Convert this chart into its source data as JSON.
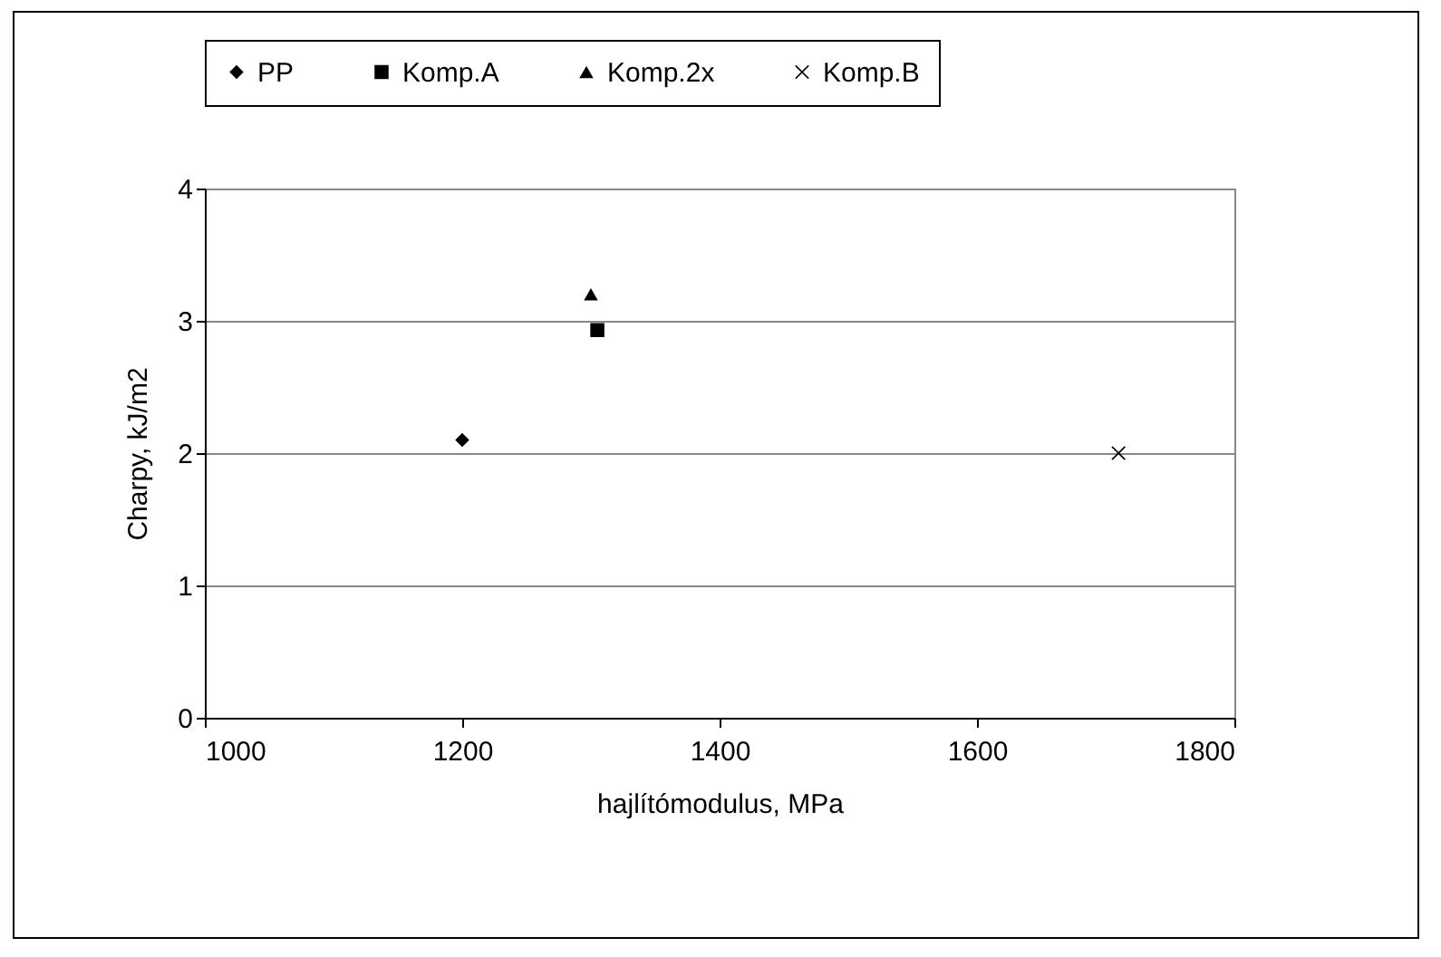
{
  "chart_data": {
    "type": "scatter",
    "xlabel": "hajlítómodulus, MPa",
    "ylabel": "Charpy, kJ/m2",
    "series": [
      {
        "name": "PP",
        "color": "#000000",
        "marker": "diamond",
        "x": [
          1200
        ],
        "values": [
          2.1
        ]
      },
      {
        "name": "Komp.A",
        "color": "#000000",
        "marker": "square",
        "x": [
          1305
        ],
        "values": [
          2.93
        ]
      },
      {
        "name": "Komp.2x",
        "color": "#000000",
        "marker": "triangle",
        "x": [
          1300
        ],
        "values": [
          3.2
        ]
      },
      {
        "name": "Komp.B",
        "color": "#000000",
        "marker": "cross",
        "x": [
          1710
        ],
        "values": [
          2.0
        ]
      }
    ],
    "xlim": [
      1000,
      1800
    ],
    "xticks": [
      1000,
      1200,
      1400,
      1600,
      1800
    ],
    "ylim": [
      0,
      4
    ],
    "yticks": [
      0,
      1,
      2,
      3,
      4
    ],
    "grid": "y",
    "legend": "top"
  }
}
